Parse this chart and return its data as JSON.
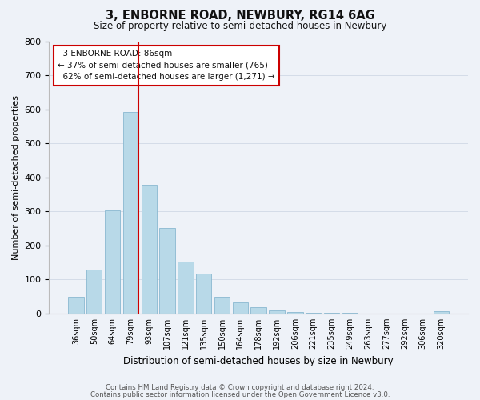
{
  "title": "3, ENBORNE ROAD, NEWBURY, RG14 6AG",
  "subtitle": "Size of property relative to semi-detached houses in Newbury",
  "xlabel": "Distribution of semi-detached houses by size in Newbury",
  "ylabel": "Number of semi-detached properties",
  "bar_labels": [
    "36sqm",
    "50sqm",
    "64sqm",
    "79sqm",
    "93sqm",
    "107sqm",
    "121sqm",
    "135sqm",
    "150sqm",
    "164sqm",
    "178sqm",
    "192sqm",
    "206sqm",
    "221sqm",
    "235sqm",
    "249sqm",
    "263sqm",
    "277sqm",
    "292sqm",
    "306sqm",
    "320sqm"
  ],
  "bar_values": [
    50,
    128,
    302,
    592,
    378,
    250,
    152,
    116,
    48,
    33,
    18,
    10,
    5,
    2,
    1,
    1,
    0,
    0,
    0,
    0,
    6
  ],
  "bar_color": "#b8d9e8",
  "bar_edge_color": "#8ab8d0",
  "red_line_after_bar": 3,
  "highlight_line_color": "#cc0000",
  "ylim": [
    0,
    800
  ],
  "yticks": [
    0,
    100,
    200,
    300,
    400,
    500,
    600,
    700,
    800
  ],
  "property_size": "86sqm",
  "pct_smaller": 37,
  "count_smaller": 765,
  "pct_larger": 62,
  "count_larger": 1271,
  "annotation_box_color": "#ffffff",
  "annotation_box_edge": "#cc0000",
  "grid_color": "#d4dce8",
  "background_color": "#eef2f8",
  "footer_line1": "Contains HM Land Registry data © Crown copyright and database right 2024.",
  "footer_line2": "Contains public sector information licensed under the Open Government Licence v3.0."
}
